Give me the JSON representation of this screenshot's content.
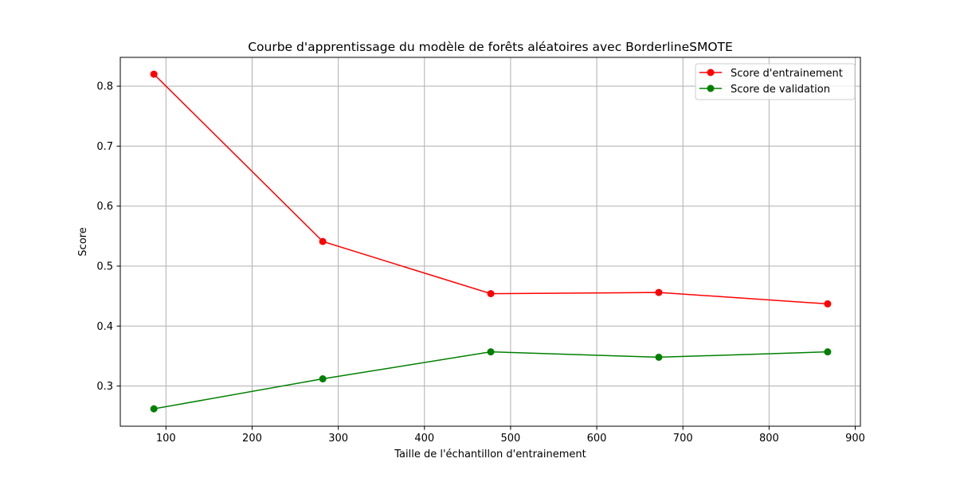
{
  "chart_data": {
    "type": "line",
    "title": "Courbe d'apprentissage du modèle de forêts aléatoires avec BorderlineSMOTE",
    "xlabel": "Taille de l'échantillon d'entrainement",
    "ylabel": "Score",
    "xlim": [
      47,
      906
    ],
    "ylim": [
      0.233,
      0.848
    ],
    "xticks": [
      100,
      200,
      300,
      400,
      500,
      600,
      700,
      800,
      900
    ],
    "yticks": [
      0.3,
      0.4,
      0.5,
      0.6,
      0.7,
      0.8
    ],
    "grid": true,
    "legend_position": "top-right",
    "x": [
      86,
      282,
      477,
      672,
      868
    ],
    "series": [
      {
        "name": "Score d'entrainement",
        "color": "#ff0000",
        "values": [
          0.82,
          0.541,
          0.454,
          0.456,
          0.437
        ]
      },
      {
        "name": "Score de validation",
        "color": "#008000",
        "values": [
          0.262,
          0.312,
          0.357,
          0.348,
          0.357
        ]
      }
    ]
  }
}
